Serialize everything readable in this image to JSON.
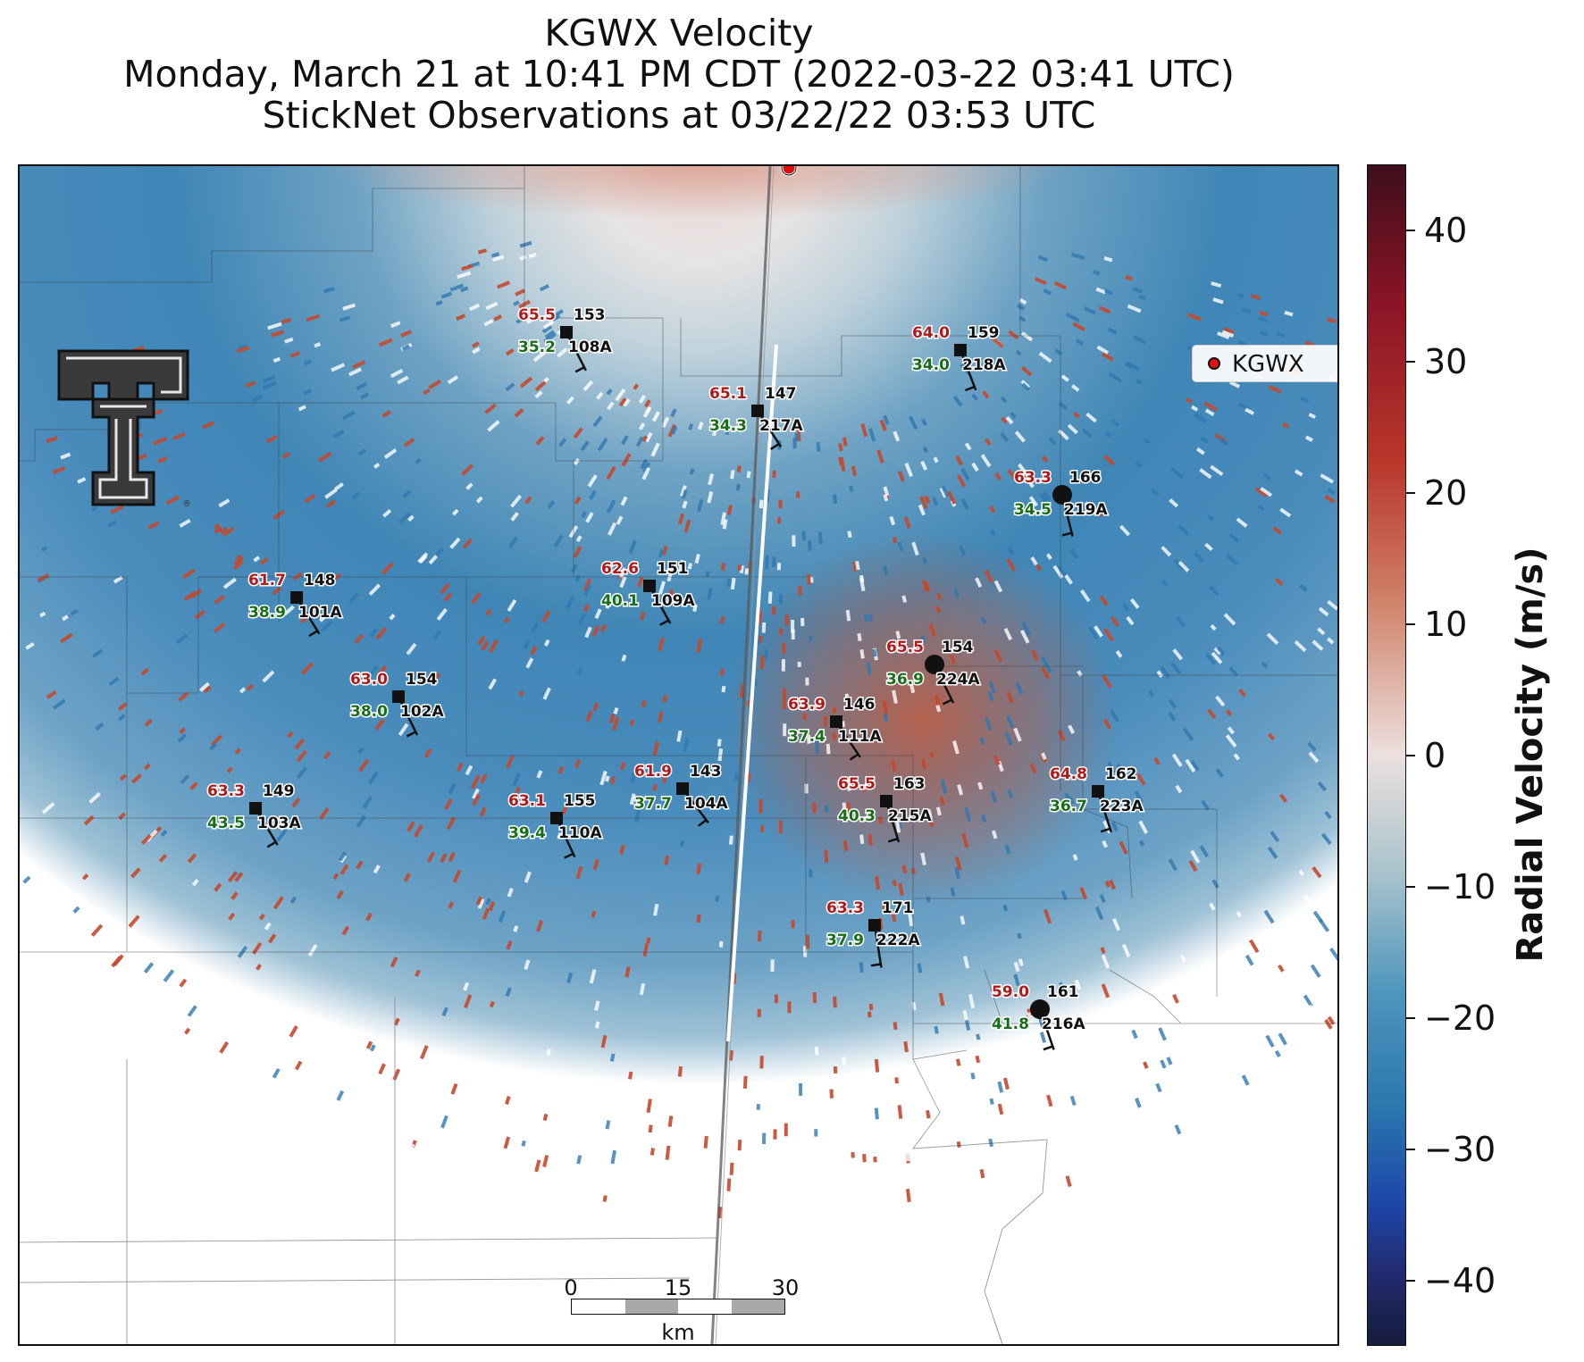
{
  "title": {
    "line1": "KGWX Velocity",
    "line2": "Monday, March 21 at 10:41 PM CDT (2022-03-22 03:41 UTC)",
    "line3": "StickNet Observations at 03/22/22 03:53 UTC"
  },
  "legend": {
    "label": "KGWX"
  },
  "colorbar": {
    "label": "Radial Velocity (m/s)",
    "range": [
      -45,
      45
    ],
    "ticks": [
      "40",
      "30",
      "20",
      "10",
      "0",
      "−10",
      "−20",
      "−30",
      "−40"
    ],
    "tick_values": [
      40,
      30,
      20,
      10,
      0,
      -10,
      -20,
      -30,
      -40
    ],
    "colors": {
      "positive_max": "#3e0f1c",
      "positive": "#b8362a",
      "zero": "#ece0de",
      "negative": "#2a76ae",
      "negative_max": "#161c3c"
    }
  },
  "scale_bar": {
    "labels": [
      "0",
      "15",
      "30"
    ],
    "unit": "km"
  },
  "logo": {
    "name": "texas-tech-double-t-logo"
  },
  "stations": [
    {
      "id": "108A",
      "temp": "65.5",
      "dir": "153",
      "dew": "35.2",
      "marker": "square"
    },
    {
      "id": "218A",
      "temp": "64.0",
      "dir": "159",
      "dew": "34.0",
      "marker": "square"
    },
    {
      "id": "217A",
      "temp": "65.1",
      "dir": "147",
      "dew": "34.3",
      "marker": "square"
    },
    {
      "id": "219A",
      "temp": "63.3",
      "dir": "166",
      "dew": "34.5",
      "marker": "circle"
    },
    {
      "id": "101A",
      "temp": "61.7",
      "dir": "148",
      "dew": "38.9",
      "marker": "square"
    },
    {
      "id": "109A",
      "temp": "62.6",
      "dir": "151",
      "dew": "40.1",
      "marker": "square"
    },
    {
      "id": "224A",
      "temp": "65.5",
      "dir": "154",
      "dew": "36.9",
      "marker": "circle"
    },
    {
      "id": "102A",
      "temp": "63.0",
      "dir": "154",
      "dew": "38.0",
      "marker": "square"
    },
    {
      "id": "111A",
      "temp": "63.9",
      "dir": "146",
      "dew": "37.4",
      "marker": "square"
    },
    {
      "id": "104A",
      "temp": "61.9",
      "dir": "143",
      "dew": "37.7",
      "marker": "square"
    },
    {
      "id": "215A",
      "temp": "65.5",
      "dir": "163",
      "dew": "40.3",
      "marker": "square"
    },
    {
      "id": "223A",
      "temp": "64.8",
      "dir": "162",
      "dew": "36.7",
      "marker": "square"
    },
    {
      "id": "103A",
      "temp": "63.3",
      "dir": "149",
      "dew": "43.5",
      "marker": "square"
    },
    {
      "id": "110A",
      "temp": "63.1",
      "dir": "155",
      "dew": "39.4",
      "marker": "square"
    },
    {
      "id": "222A",
      "temp": "63.3",
      "dir": "171",
      "dew": "37.9",
      "marker": "square"
    },
    {
      "id": "216A",
      "temp": "59.0",
      "dir": "161",
      "dew": "41.8",
      "marker": "circle"
    }
  ]
}
